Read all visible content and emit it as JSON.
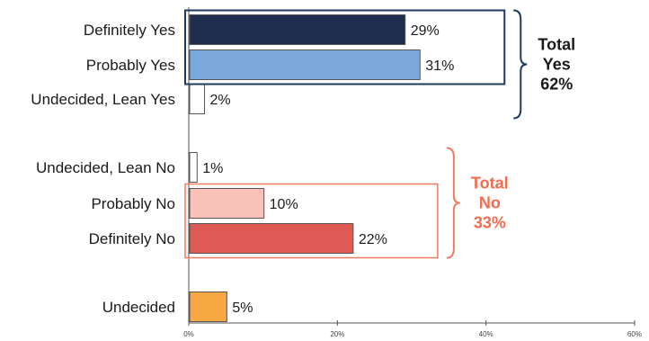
{
  "chart_data": {
    "type": "bar",
    "orientation": "horizontal",
    "categories": [
      "Definitely Yes",
      "Probably Yes",
      "Undecided, Lean Yes",
      "Undecided, Lean No",
      "Probably No",
      "Definitely No",
      "Undecided"
    ],
    "values": [
      29,
      31,
      2,
      1,
      10,
      22,
      5
    ],
    "value_labels": [
      "29%",
      "31%",
      "2%",
      "1%",
      "10%",
      "22%",
      "5%"
    ],
    "bar_colors": [
      "#1f2d4e",
      "#7aa8dc",
      "#ffffff",
      "#ffffff",
      "#f8c2b8",
      "#e05a55",
      "#f7a842"
    ],
    "xlim": [
      0,
      60
    ],
    "xticks": [
      "0%",
      "20%",
      "40%",
      "60%"
    ],
    "grid": false,
    "groups": [
      {
        "lines": [
          "Total",
          "Yes",
          "62%"
        ],
        "members": [
          0,
          1
        ],
        "bracket_members": [
          0,
          1,
          2
        ],
        "color": "#1f3a5f",
        "text_color": "#1a1a1a"
      },
      {
        "lines": [
          "Total",
          "No",
          "33%"
        ],
        "members": [
          4,
          5
        ],
        "bracket_members": [
          3,
          4,
          5
        ],
        "color": "#f07a60",
        "text_color": "#f26b4e"
      }
    ]
  }
}
